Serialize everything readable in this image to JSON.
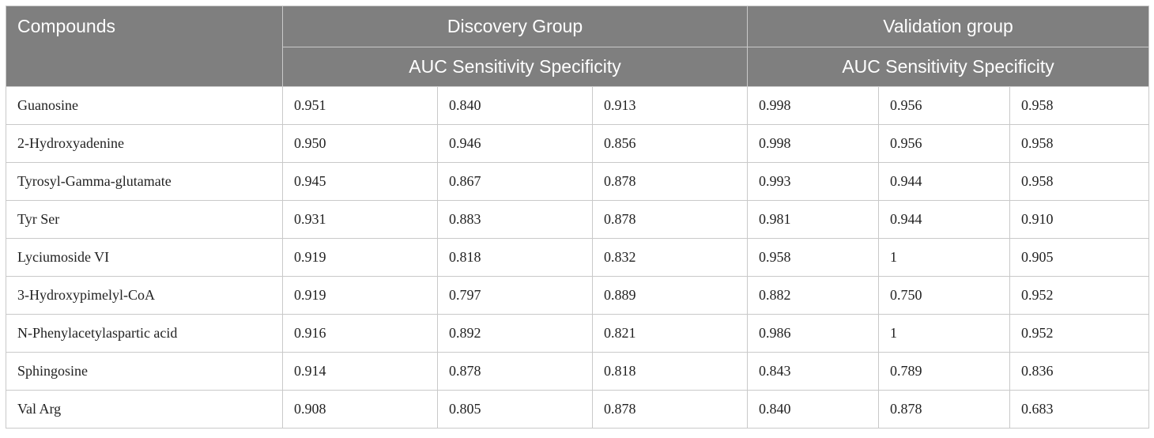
{
  "header": {
    "compounds": "Compounds",
    "discovery_group": "Discovery Group",
    "validation_group": "Validation group",
    "discovery_metrics": "AUC Sensitivity Specificity",
    "validation_metrics": "AUC Sensitivity Specificity"
  },
  "rows": [
    {
      "compound": "Guanosine",
      "values": [
        "0.951",
        "0.840",
        "0.913",
        "0.998",
        "0.956",
        "0.958"
      ]
    },
    {
      "compound": "2-Hydroxyadenine",
      "values": [
        "0.950",
        "0.946",
        "0.856",
        "0.998",
        "0.956",
        "0.958"
      ]
    },
    {
      "compound": "Tyrosyl-Gamma-glutamate",
      "values": [
        "0.945",
        "0.867",
        "0.878",
        "0.993",
        "0.944",
        "0.958"
      ]
    },
    {
      "compound": "Tyr Ser",
      "values": [
        "0.931",
        "0.883",
        "0.878",
        "0.981",
        "0.944",
        "0.910"
      ]
    },
    {
      "compound": "Lyciumoside VI",
      "values": [
        "0.919",
        "0.818",
        "0.832",
        "0.958",
        "1",
        "0.905"
      ]
    },
    {
      "compound": "3-Hydroxypimelyl-CoA",
      "values": [
        "0.919",
        "0.797",
        "0.889",
        "0.882",
        "0.750",
        "0.952"
      ]
    },
    {
      "compound": "N-Phenylacetylaspartic acid",
      "values": [
        "0.916",
        "0.892",
        "0.821",
        "0.986",
        "1",
        "0.952"
      ]
    },
    {
      "compound": "Sphingosine",
      "values": [
        "0.914",
        "0.878",
        "0.818",
        "0.843",
        "0.789",
        "0.836"
      ]
    },
    {
      "compound": "Val Arg",
      "values": [
        "0.908",
        "0.805",
        "0.878",
        "0.840",
        "0.878",
        "0.683"
      ]
    }
  ]
}
